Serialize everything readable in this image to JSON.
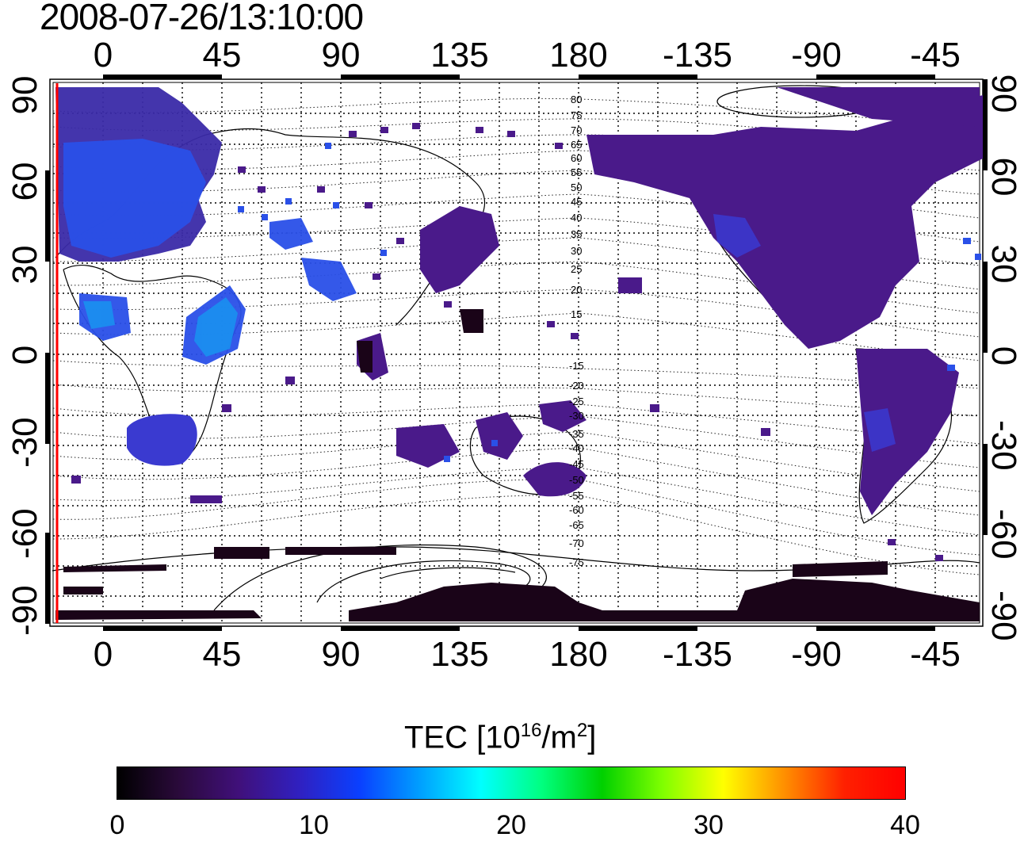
{
  "timestamp": "2008-07-26/13:10:00",
  "top_axis_ticks": [
    "0",
    "45",
    "90",
    "135",
    "180",
    "-135",
    "-90",
    "-45"
  ],
  "bottom_axis_ticks": [
    "0",
    "45",
    "90",
    "135",
    "180",
    "-135",
    "-90",
    "-45"
  ],
  "left_axis_ticks": [
    "90",
    "60",
    "30",
    "0",
    "-30",
    "-60",
    "-90"
  ],
  "right_axis_ticks": [
    "90",
    "60",
    "30",
    "0",
    "-30",
    "-60",
    "-90"
  ],
  "contour_labels_north": [
    "80",
    "75",
    "70",
    "65",
    "60",
    "55",
    "50",
    "45",
    "40",
    "35",
    "30",
    "25",
    "20",
    "15"
  ],
  "contour_labels_south": [
    "-15",
    "-20",
    "-25",
    "-30",
    "-35",
    "-40",
    "-45",
    "-50",
    "-55",
    "-60",
    "-65",
    "-70",
    "-75"
  ],
  "colorbar": {
    "title_main": "TEC  [10",
    "title_sup1": "16",
    "title_mid": "/m",
    "title_sup2": "2",
    "title_end": "]",
    "ticks": [
      "0",
      "10",
      "20",
      "30",
      "40"
    ],
    "colors": [
      "#000000",
      "#2a0a3a",
      "#40107a",
      "#3020c0",
      "#0a40ff",
      "#00a0ff",
      "#00ffff",
      "#00ff80",
      "#00d000",
      "#80ff00",
      "#ffff00",
      "#ff9000",
      "#ff2000",
      "#ff0000"
    ]
  },
  "colors": {
    "data_dark": "#1a0418",
    "data_purple": "#4a1a8a",
    "data_indigo": "#3a2aa8",
    "data_blue": "#2a50e8",
    "data_cyan": "#1a90f0",
    "meridian_marker": "#ff0000"
  }
}
